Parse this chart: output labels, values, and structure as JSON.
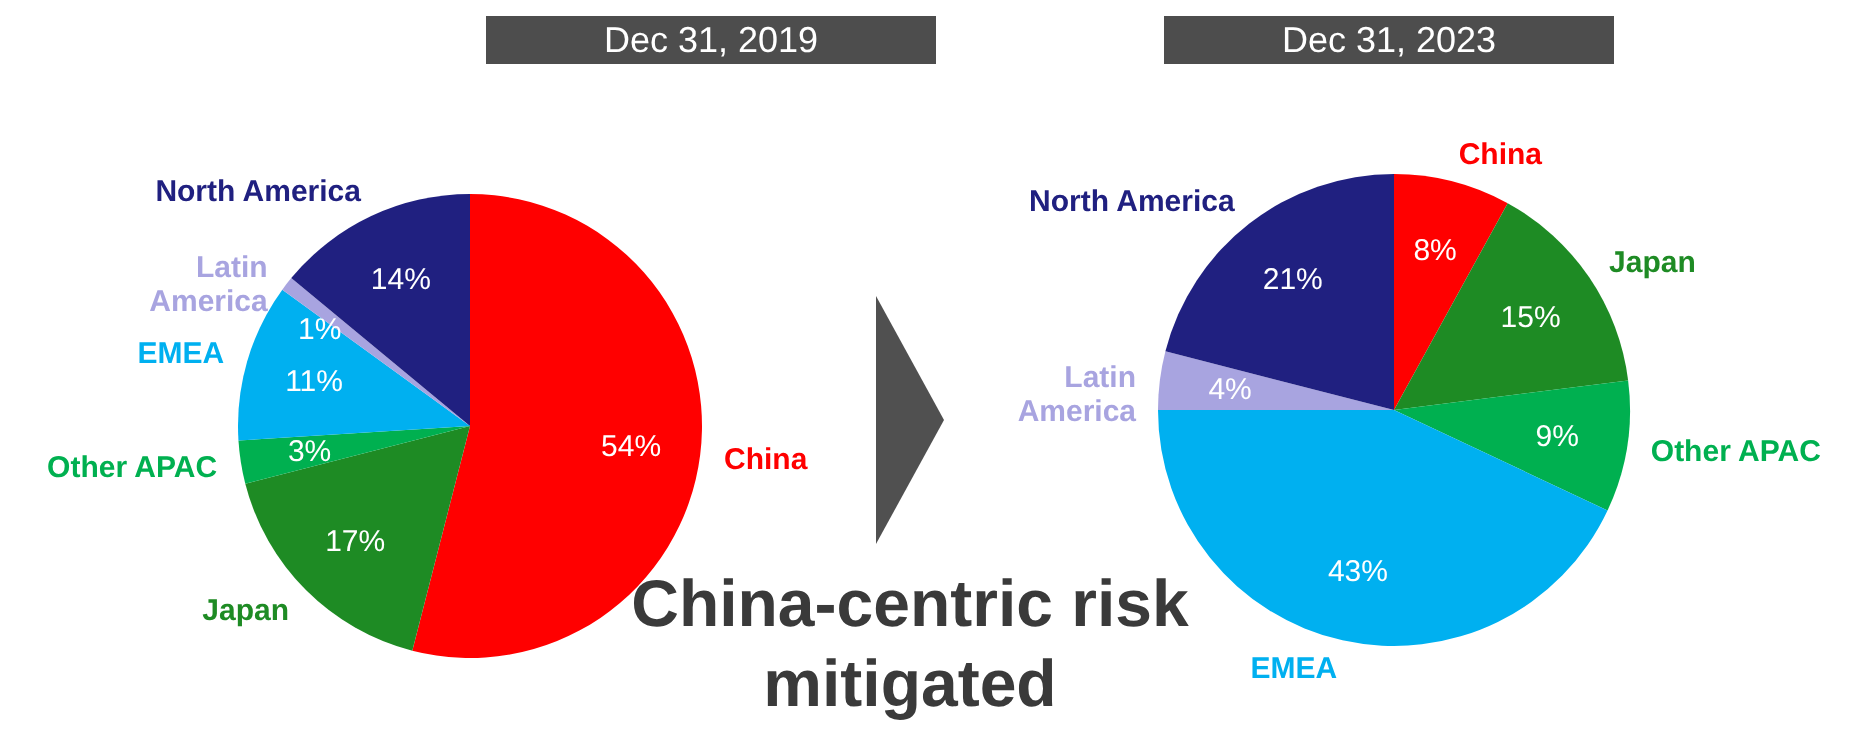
{
  "chart_data": [
    {
      "type": "pie",
      "title": "Dec 31, 2019",
      "categories": [
        "China",
        "Japan",
        "Other APAC",
        "EMEA",
        "Latin\nAmerica",
        "North America"
      ],
      "values": [
        54,
        17,
        3,
        11,
        1,
        14
      ],
      "value_labels": [
        "54%",
        "17%",
        "3%",
        "11%",
        "1%",
        "14%"
      ],
      "colors": [
        "#ff0000",
        "#1e8b24",
        "#00b050",
        "#00b0f0",
        "#a8a4e0",
        "#202080"
      ],
      "annotations": [
        "China-centric risk mitigated"
      ]
    },
    {
      "type": "pie",
      "title": "Dec 31, 2023",
      "categories": [
        "China",
        "Japan",
        "Other APAC",
        "EMEA",
        "Latin\nAmerica",
        "North America"
      ],
      "values": [
        8,
        15,
        9,
        43,
        4,
        21
      ],
      "value_labels": [
        "8%",
        "15%",
        "9%",
        "43%",
        "4%",
        "21%"
      ],
      "colors": [
        "#ff0000",
        "#1e8b24",
        "#00b050",
        "#00b0f0",
        "#a8a4e0",
        "#202080"
      ]
    }
  ]
}
